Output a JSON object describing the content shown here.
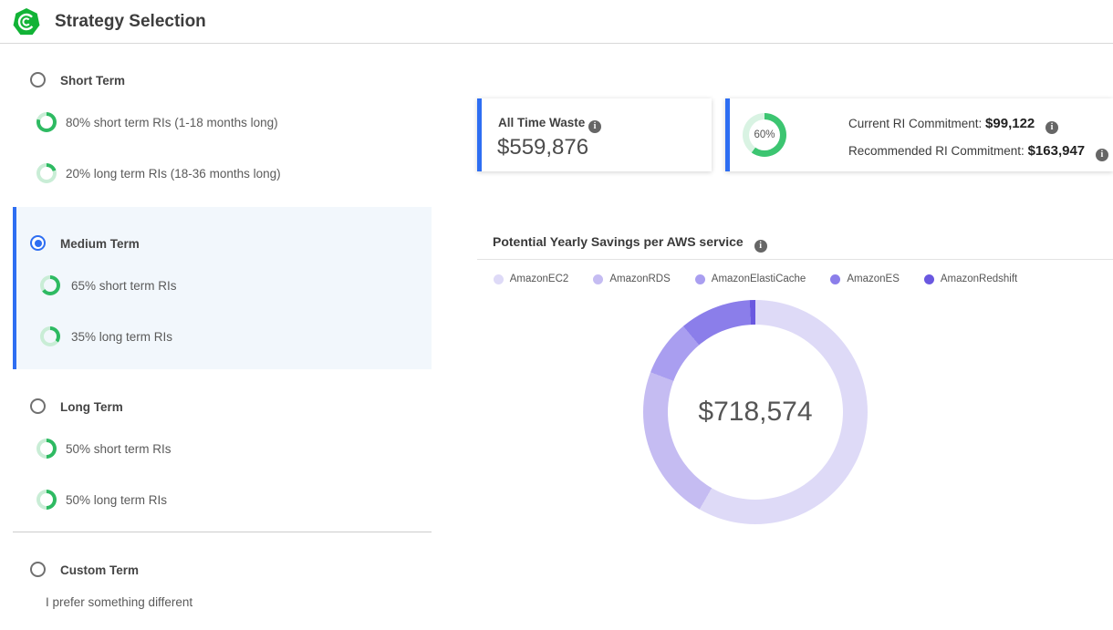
{
  "header": {
    "title": "Strategy Selection"
  },
  "icons": {
    "info_glyph": "i"
  },
  "colors": {
    "accent_blue": "#2e6ef2",
    "option_ring": {
      "dark": "#2eba62",
      "light": "#c9edd6"
    },
    "commit_ring": {
      "dark": "#3cc571",
      "light": "#d9f3e3"
    },
    "selected_bg": "#f2f7fc"
  },
  "strategies": [
    {
      "label": "Short Term",
      "selected": false,
      "options": [
        {
          "percent": 80,
          "label": "80% short term RIs (1-18 months long)"
        },
        {
          "percent": 20,
          "label": "20% long term RIs (18-36 months long)"
        }
      ]
    },
    {
      "label": "Medium Term",
      "selected": true,
      "options": [
        {
          "percent": 65,
          "label": "65% short term RIs"
        },
        {
          "percent": 35,
          "label": "35% long term RIs"
        }
      ]
    },
    {
      "label": "Long Term",
      "selected": false,
      "options": [
        {
          "percent": 50,
          "label": "50% short term RIs"
        },
        {
          "percent": 50,
          "label": "50% long term RIs"
        }
      ]
    },
    {
      "label": "Custom Term",
      "selected": false,
      "description": "I prefer something different",
      "options": []
    }
  ],
  "cards": {
    "waste": {
      "title": "All Time Waste",
      "value": "$559,876"
    },
    "commitment": {
      "ring_label": "60%",
      "ring_percent": 60,
      "current_label": "Current RI Commitment:",
      "current_value": "$99,122",
      "recommended_label": "Recommended RI Commitment:",
      "recommended_value": "$163,947"
    }
  },
  "chart_data": {
    "type": "pie",
    "variant": "donut",
    "title": "Potential Yearly Savings per AWS service",
    "center_total": "$718,574",
    "legend_position": "top",
    "start_angle_deg": 0,
    "segments": [
      {
        "name": "AmazonEC2",
        "percent": 58.3,
        "color": "#dedaf7"
      },
      {
        "name": "AmazonRDS",
        "percent": 22.5,
        "color": "#c5bcf2"
      },
      {
        "name": "AmazonElastiCache",
        "percent": 8.1,
        "color": "#a99ef0"
      },
      {
        "name": "AmazonES",
        "percent": 10.3,
        "color": "#8b7eea"
      },
      {
        "name": "AmazonRedshift",
        "percent": 0.8,
        "color": "#6a58e0"
      }
    ]
  }
}
